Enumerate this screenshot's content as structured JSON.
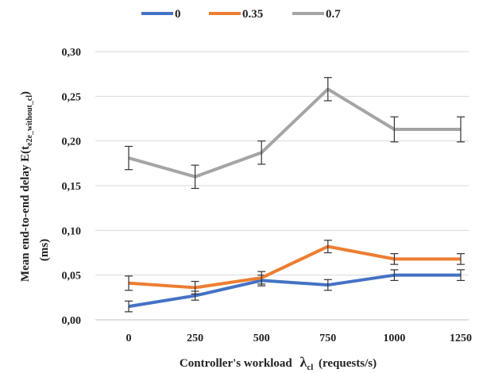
{
  "chart_data": {
    "type": "line",
    "categories": [
      "0",
      "250",
      "500",
      "750",
      "1000",
      "1250"
    ],
    "series": [
      {
        "name": "0",
        "color": "#4472c4",
        "values": [
          0.015,
          0.027,
          0.044,
          0.039,
          0.05,
          0.05
        ],
        "errors": [
          0.006,
          0.005,
          0.006,
          0.006,
          0.006,
          0.006
        ]
      },
      {
        "name": "0.35",
        "color": "#ed7d31",
        "values": [
          0.041,
          0.036,
          0.047,
          0.082,
          0.068,
          0.068
        ],
        "errors": [
          0.008,
          0.007,
          0.007,
          0.007,
          0.006,
          0.006
        ]
      },
      {
        "name": "0.7",
        "color": "#a5a5a5",
        "values": [
          0.181,
          0.16,
          0.187,
          0.258,
          0.213,
          0.213
        ],
        "errors": [
          0.013,
          0.013,
          0.013,
          0.013,
          0.014,
          0.014
        ]
      }
    ],
    "ylim": [
      0,
      0.3
    ],
    "yticks": [
      "0,00",
      "0,05",
      "0,10",
      "0,15",
      "0,20",
      "0,25",
      "0,30"
    ],
    "ytick_values": [
      0,
      0.05,
      0.1,
      0.15,
      0.2,
      0.25,
      0.3
    ],
    "xlabel": {
      "prefix": "Controller's workload",
      "symbol": "λ",
      "sub": "cl",
      "suffix": "(requests/s)"
    },
    "ylabel": {
      "line1_prefix": "Mean end-to-end delay E(t",
      "line1_sub": "e2e_without_cl",
      "line1_suffix": ")",
      "line2": "(ms)"
    },
    "grid": true,
    "legend_position": "top"
  }
}
